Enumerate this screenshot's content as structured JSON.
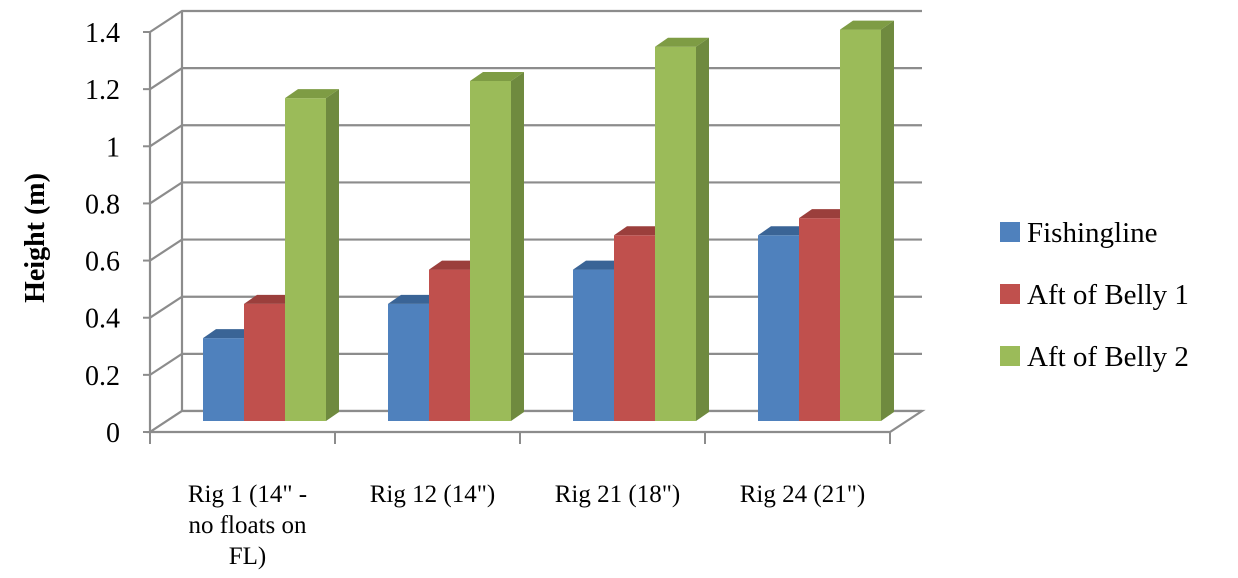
{
  "chart_data": {
    "type": "bar",
    "title": "",
    "xlabel": "",
    "ylabel": "Height (m)",
    "ylim": [
      0,
      1.4
    ],
    "yticks": [
      "0",
      "0.2",
      "0.4",
      "0.6",
      "0.8",
      "1",
      "1.2",
      "1.4"
    ],
    "grid": true,
    "three_d": true,
    "legend_position": "right",
    "categories": [
      [
        "Rig 1 (14\" -",
        "no floats on",
        "FL)"
      ],
      [
        "Rig 12 (14\")"
      ],
      [
        "Rig 21 (18\")"
      ],
      [
        "Rig 24 (21\")"
      ]
    ],
    "series": [
      {
        "name": "Fishingline",
        "color": "#4F81BD",
        "side_color": "#385D8A",
        "top_color": "#3A6496",
        "values": [
          0.29,
          0.41,
          0.53,
          0.65
        ]
      },
      {
        "name": "Aft of Belly 1",
        "color": "#C0504D",
        "side_color": "#8E3A38",
        "top_color": "#9B3F3C",
        "values": [
          0.41,
          0.53,
          0.65,
          0.71
        ]
      },
      {
        "name": "Aft of Belly 2",
        "color": "#9BBB59",
        "side_color": "#6F8A3F",
        "top_color": "#7E9C44",
        "values": [
          1.13,
          1.19,
          1.31,
          1.37
        ]
      }
    ]
  }
}
